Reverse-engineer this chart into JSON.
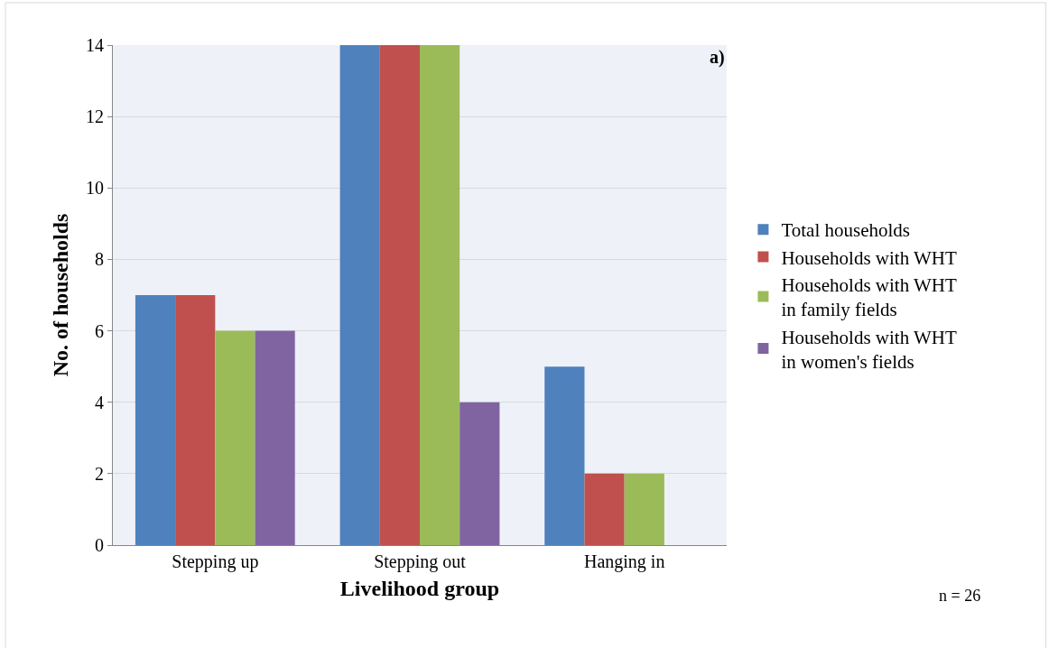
{
  "chart_data": {
    "type": "bar",
    "xlabel": "Livelihood group",
    "ylabel": "No. of households",
    "categories": [
      "Stepping up",
      "Stepping out",
      "Hanging in"
    ],
    "series": [
      {
        "name": "Total households",
        "color": "#4f81bd",
        "values": [
          7,
          14,
          5
        ]
      },
      {
        "name": "Households with WHT",
        "color": "#c0504d",
        "values": [
          7,
          14,
          2
        ]
      },
      {
        "name": "Households with WHT in family fields",
        "color": "#9bbb59",
        "values": [
          6,
          14,
          2
        ]
      },
      {
        "name": "Households with WHT in women's fields",
        "color": "#8064a2",
        "values": [
          6,
          4,
          0
        ]
      }
    ],
    "ylim": [
      0,
      14
    ],
    "yticks": [
      0,
      2,
      4,
      6,
      8,
      10,
      12,
      14
    ],
    "grid": "y",
    "legend": "right",
    "annotations": [
      "a)",
      "n = 26"
    ]
  }
}
